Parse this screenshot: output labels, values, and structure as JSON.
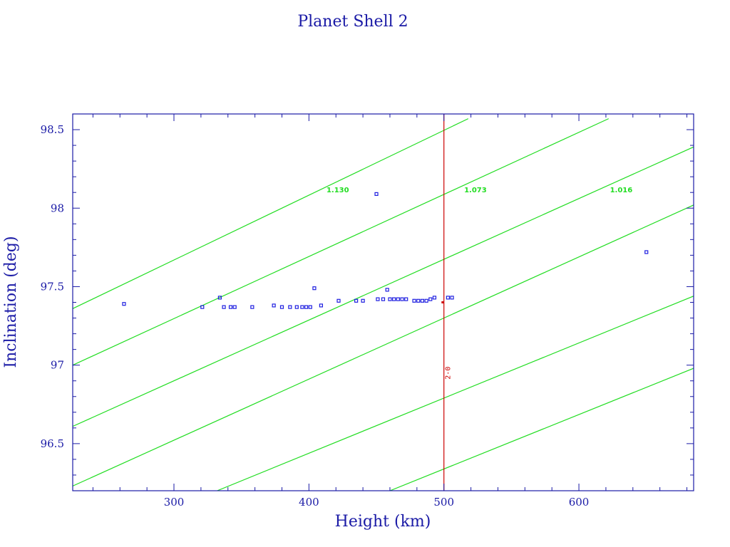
{
  "chart_data": {
    "type": "scatter",
    "title": "Planet Shell 2",
    "xlabel": "Height (km)",
    "ylabel": "Inclination (deg)",
    "xlim": [
      225,
      685
    ],
    "ylim": [
      96.2,
      98.6
    ],
    "x_ticks": [
      300,
      400,
      500,
      600
    ],
    "y_ticks": [
      96.5,
      97,
      97.5,
      98,
      98.5
    ],
    "x_tick_labels": [
      "300",
      "400",
      "500",
      "600"
    ],
    "y_tick_labels": [
      "96.5",
      "97",
      "97.5",
      "98",
      "98.5"
    ],
    "grid": false,
    "colors": {
      "axes": "#1a1aa6",
      "points": "#1f1fe0",
      "contours": "#22dd22",
      "reference": "#cc0000"
    },
    "series": [
      {
        "values": [
          [
            263,
            97.39
          ],
          [
            321,
            97.37
          ],
          [
            334,
            97.43
          ],
          [
            337,
            97.37
          ],
          [
            342,
            97.37
          ],
          [
            345,
            97.37
          ],
          [
            358,
            97.37
          ],
          [
            374,
            97.38
          ],
          [
            380,
            97.37
          ],
          [
            386,
            97.37
          ],
          [
            391,
            97.37
          ],
          [
            395,
            97.37
          ],
          [
            398,
            97.37
          ],
          [
            401,
            97.37
          ],
          [
            404,
            97.49
          ],
          [
            409,
            97.38
          ],
          [
            422,
            97.41
          ],
          [
            435,
            97.41
          ],
          [
            440,
            97.41
          ],
          [
            450,
            98.09
          ],
          [
            451,
            97.42
          ],
          [
            455,
            97.42
          ],
          [
            458,
            97.48
          ],
          [
            460,
            97.42
          ],
          [
            463,
            97.42
          ],
          [
            466,
            97.42
          ],
          [
            469,
            97.42
          ],
          [
            472,
            97.42
          ],
          [
            478,
            97.41
          ],
          [
            481,
            97.41
          ],
          [
            484,
            97.41
          ],
          [
            487,
            97.41
          ],
          [
            490,
            97.42
          ],
          [
            493,
            97.43
          ],
          [
            503,
            97.43
          ],
          [
            506,
            97.43
          ],
          [
            650,
            97.72
          ]
        ]
      }
    ],
    "contours": [
      {
        "label": "1.130",
        "x1": 225,
        "y1": 97.36,
        "x2": 518,
        "y2": 98.57,
        "label_x": 413,
        "label_y": 98.12
      },
      {
        "label": "1.073",
        "x1": 225,
        "y1": 97.0,
        "x2": 622,
        "y2": 98.57,
        "label_x": 515,
        "label_y": 98.12
      },
      {
        "label": "1.016",
        "x1": 225,
        "y1": 96.61,
        "x2": 685,
        "y2": 98.39,
        "label_x": 623,
        "label_y": 98.12
      },
      {
        "label": "",
        "x1": 225,
        "y1": 96.23,
        "x2": 685,
        "y2": 98.02
      },
      {
        "label": "",
        "x1": 332,
        "y1": 96.2,
        "x2": 685,
        "y2": 97.44
      },
      {
        "label": "",
        "x1": 460,
        "y1": 96.2,
        "x2": 685,
        "y2": 96.98
      }
    ],
    "reference_line": {
      "x": 500,
      "label": "2-0",
      "label_y": 96.95
    },
    "reference_points": [
      [
        499,
        97.4
      ]
    ]
  }
}
